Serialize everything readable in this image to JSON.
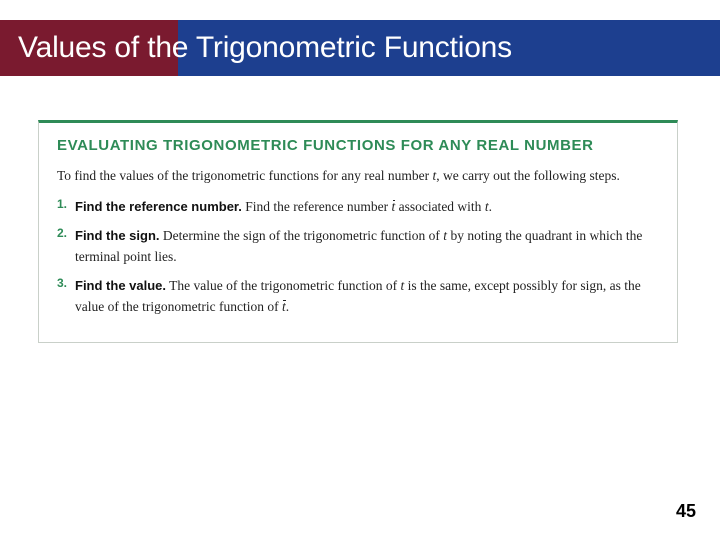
{
  "colors": {
    "title_red": "#7a1a2f",
    "title_blue": "#1d3f8f",
    "accent_green": "#2e8b57",
    "box_border": "#c9d0c9",
    "text": "#222222",
    "background": "#ffffff"
  },
  "title": "Values of the Trigonometric Functions",
  "box": {
    "heading": "EVALUATING TRIGONOMETRIC FUNCTIONS FOR ANY REAL NUMBER",
    "lead_a": "To find the values of the trigonometric functions for any real number ",
    "lead_var": "t",
    "lead_b": ", we carry out the following steps.",
    "steps": [
      {
        "num": "1.",
        "title": "Find the reference number.",
        "body_a": " Find the reference number ",
        "sym1": "t",
        "body_b": " associated with ",
        "var1": "t",
        "body_c": "."
      },
      {
        "num": "2.",
        "title": "Find the sign.",
        "body_a": " Determine the sign of the trigonometric function of ",
        "var1": "t",
        "body_b": " by noting the quadrant in which the terminal point lies.",
        "sym1": "",
        "body_c": ""
      },
      {
        "num": "3.",
        "title": "Find the value.",
        "body_a": " The value of the trigonometric function of ",
        "var1": "t",
        "body_b": " is the same, except possibly for sign, as the value of the trigonometric function of ",
        "sym1": "t",
        "body_c": "."
      }
    ]
  },
  "page_number": "45"
}
